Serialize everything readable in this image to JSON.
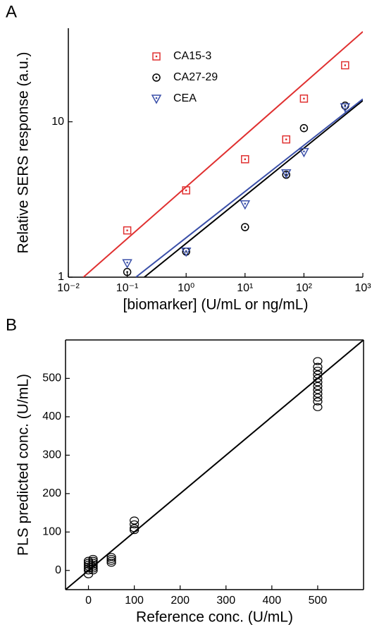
{
  "chart_data": [
    {
      "type": "scatter",
      "panel_label": "A",
      "x_label": "[biomarker] (U/mL or ng/mL)",
      "y_label": "Relative SERS response (a.u.)",
      "x_log": true,
      "y_log": true,
      "xlim": [
        0.01,
        1000
      ],
      "ylim": [
        1,
        40
      ],
      "xticks": [
        {
          "value": 0.01,
          "label": "10⁻²"
        },
        {
          "value": 0.1,
          "label": "10⁻¹"
        },
        {
          "value": 1,
          "label": "10⁰"
        },
        {
          "value": 10,
          "label": "10¹"
        },
        {
          "value": 100,
          "label": "10²"
        },
        {
          "value": 1000,
          "label": "10³"
        }
      ],
      "yticks": [
        1,
        10
      ],
      "legend": "top-left",
      "series": [
        {
          "name": "CA15-3",
          "color": "#e03030",
          "marker": "square",
          "x": [
            0.1,
            1,
            10,
            50,
            100,
            500
          ],
          "values": [
            2.0,
            3.62,
            5.74,
            7.7,
            14.1,
            23.1
          ],
          "fit": {
            "x": [
              0.018,
              1000
            ],
            "y": [
              1,
              38
            ]
          }
        },
        {
          "name": "CA27-29",
          "color": "#000000",
          "marker": "circle",
          "x": [
            0.1,
            1,
            10,
            50,
            100,
            500
          ],
          "values": [
            1.08,
            1.46,
            2.1,
            4.56,
            9.1,
            12.7
          ],
          "fit": {
            "x": [
              0.195,
              1000
            ],
            "y": [
              1,
              13.7
            ]
          }
        },
        {
          "name": "CEA",
          "color": "#3a4fa8",
          "marker": "triangle-down",
          "x": [
            0.1,
            1,
            10,
            50,
            100,
            500
          ],
          "values": [
            1.23,
            1.46,
            2.94,
            4.66,
            6.38,
            12.4
          ],
          "fit": {
            "x": [
              0.14,
              1000
            ],
            "y": [
              1,
              14
            ]
          }
        }
      ]
    },
    {
      "type": "scatter",
      "panel_label": "B",
      "x_label": "Reference conc. (U/mL)",
      "y_label": "PLS predicted conc. (U/mL)",
      "x_log": false,
      "y_log": false,
      "xlim": [
        -50,
        600
      ],
      "ylim": [
        -50,
        600
      ],
      "xticks": [
        0,
        100,
        200,
        300,
        400,
        500
      ],
      "yticks": [
        0,
        100,
        200,
        300,
        400,
        500
      ],
      "series": [
        {
          "color": "#000000",
          "marker": "open-circle",
          "x": [
            0,
            0,
            0,
            0,
            0,
            0,
            0,
            10,
            10,
            10,
            10,
            10,
            10,
            10,
            50,
            50,
            50,
            50,
            100,
            100,
            100,
            100,
            500,
            500,
            500,
            500,
            500,
            500,
            500,
            500,
            500,
            500,
            500,
            500
          ],
          "values": [
            -10,
            0,
            5,
            10,
            15,
            20,
            25,
            0,
            5,
            10,
            15,
            20,
            25,
            30,
            20,
            25,
            30,
            35,
            105,
            110,
            120,
            130,
            425,
            440,
            450,
            460,
            470,
            480,
            490,
            500,
            510,
            520,
            530,
            545
          ],
          "fit": {
            "x": [
              -50,
              600
            ],
            "y": [
              -50,
              600
            ]
          }
        }
      ]
    }
  ]
}
